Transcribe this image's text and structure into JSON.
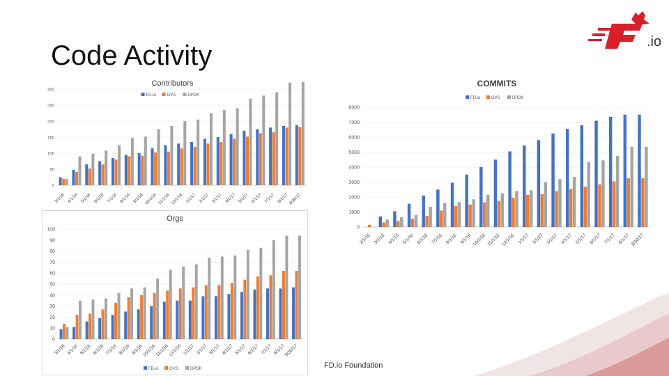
{
  "slide": {
    "title": "Code Activity",
    "footer": "FD.io Foundation",
    "logo_text": ".io"
  },
  "colors": {
    "fdio": "#4472C4",
    "ovs": "#ED7D31",
    "dpdk": "#A5A5A5",
    "accent_red": "#D7202A"
  },
  "chart_data": [
    {
      "id": "contributors",
      "type": "bar",
      "title": "Contributors",
      "ylim": [
        0,
        300
      ],
      "yticks": [
        "0",
        "50",
        "100",
        "150",
        "200",
        "250",
        "300"
      ],
      "legend_position": "top",
      "categories": [
        "3/1/16",
        "4/1/16",
        "5/1/16",
        "6/1/16",
        "7/1/16",
        "8/1/16",
        "9/1/16",
        "10/1/16",
        "11/1/16",
        "12/1/16",
        "1/1/17",
        "2/1/17",
        "3/1/17",
        "4/1/17",
        "5/1/17",
        "6/1/17",
        "7/1/17",
        "8/1/17",
        "8/30/17"
      ],
      "series": [
        {
          "name": "FD.io",
          "color": "#4472C4",
          "values": [
            25,
            48,
            65,
            75,
            85,
            95,
            100,
            115,
            125,
            130,
            135,
            145,
            150,
            160,
            170,
            175,
            180,
            185,
            188
          ]
        },
        {
          "name": "OVS",
          "color": "#ED7D31",
          "values": [
            20,
            42,
            52,
            65,
            80,
            90,
            92,
            102,
            105,
            115,
            120,
            130,
            135,
            145,
            152,
            162,
            165,
            180,
            182
          ]
        },
        {
          "name": "DPDK",
          "color": "#A5A5A5",
          "values": [
            20,
            90,
            98,
            108,
            125,
            148,
            152,
            175,
            185,
            200,
            205,
            225,
            235,
            240,
            270,
            280,
            290,
            320,
            322
          ]
        }
      ]
    },
    {
      "id": "orgs",
      "type": "bar",
      "title": "Orgs",
      "ylim": [
        0,
        100
      ],
      "yticks": [
        "0",
        "10",
        "20",
        "30",
        "40",
        "50",
        "60",
        "70",
        "80",
        "90",
        "100"
      ],
      "legend_position": "bottom",
      "categories": [
        "3/1/16",
        "4/1/16",
        "5/1/16",
        "6/1/16",
        "7/1/16",
        "8/1/16",
        "9/1/16",
        "10/1/16",
        "11/1/16",
        "12/1/16",
        "1/1/17",
        "2/1/17",
        "3/1/17",
        "4/1/17",
        "5/1/17",
        "6/1/17",
        "7/1/17",
        "8/1/17",
        "8/30/17"
      ],
      "series": [
        {
          "name": "FD.io",
          "color": "#4472C4",
          "values": [
            9,
            11,
            16,
            19,
            22,
            25,
            27,
            30,
            34,
            35,
            35,
            39,
            39,
            41,
            43,
            45,
            46,
            46,
            47
          ]
        },
        {
          "name": "OVS",
          "color": "#ED7D31",
          "values": [
            14,
            22,
            23,
            27,
            33,
            38,
            40,
            42,
            44,
            46,
            47,
            49,
            49,
            51,
            54,
            57,
            58,
            62,
            62
          ]
        },
        {
          "name": "DPDK",
          "color": "#A5A5A5",
          "values": [
            11,
            35,
            36,
            37,
            42,
            46,
            47,
            55,
            63,
            66,
            68,
            74,
            75,
            76,
            81,
            83,
            90,
            94,
            94
          ]
        }
      ]
    },
    {
      "id": "commits",
      "type": "bar",
      "title": "COMMITS",
      "ylim": [
        0,
        8000
      ],
      "yticks": [
        "0",
        "1000",
        "2000",
        "3000",
        "4000",
        "5000",
        "6000",
        "7000",
        "8000"
      ],
      "legend_position": "top",
      "categories": [
        "2/1/16",
        "3/1/16",
        "4/1/16",
        "5/1/16",
        "6/1/16",
        "7/1/16",
        "8/1/16",
        "9/1/16",
        "10/1/16",
        "11/1/16",
        "12/1/16",
        "1/1/17",
        "2/1/17",
        "3/1/17",
        "4/1/17",
        "5/1/17",
        "6/1/17",
        "7/1/17",
        "8/1/17",
        "8/30/17"
      ],
      "series": [
        {
          "name": "FD.io",
          "color": "#4472C4",
          "values": [
            0,
            700,
            1050,
            1550,
            2100,
            2500,
            2950,
            3500,
            4000,
            4500,
            5050,
            5450,
            5800,
            6250,
            6550,
            6800,
            7100,
            7350,
            7500,
            7500
          ]
        },
        {
          "name": "OVS",
          "color": "#ED7D31",
          "values": [
            150,
            300,
            400,
            550,
            750,
            1100,
            1400,
            1500,
            1650,
            1750,
            1950,
            2150,
            2200,
            2400,
            2550,
            2700,
            2850,
            3050,
            3250,
            3250
          ]
        },
        {
          "name": "DPDK",
          "color": "#A5A5A5",
          "values": [
            0,
            500,
            650,
            800,
            1350,
            1600,
            1650,
            1850,
            2150,
            2250,
            2400,
            2450,
            3000,
            3200,
            3350,
            4350,
            4450,
            4750,
            5350,
            5350
          ]
        }
      ]
    }
  ]
}
